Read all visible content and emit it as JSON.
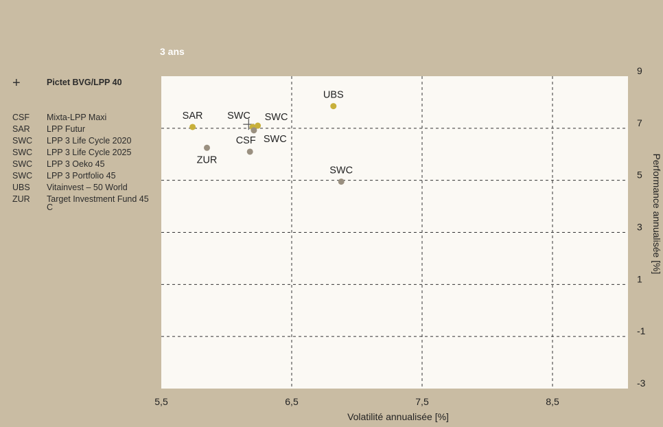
{
  "chart_data": {
    "type": "scatter",
    "subtitle": "3 ans",
    "xlabel": "Volatilité annualisée [%]",
    "ylabel": "Performance annualisée [%]",
    "xlim": [
      5.5,
      9.2
    ],
    "ylim": [
      -3,
      9
    ],
    "x_ticks": [
      "5,5",
      "6,5",
      "7,5",
      "8,5"
    ],
    "x_tick_values": [
      5.5,
      6.5,
      7.5,
      8.5
    ],
    "y_ticks": [
      "9",
      "7",
      "5",
      "3",
      "1",
      "-1",
      "-3"
    ],
    "y_tick_values": [
      9,
      7,
      5,
      3,
      1,
      -1,
      -3
    ],
    "grid": true,
    "benchmark": {
      "name": "Pictet BVG/LPP 40",
      "x": 6.17,
      "y": 7.15
    },
    "points": [
      {
        "label": "SAR",
        "x": 5.74,
        "y": 7.05,
        "color": "#c8b03a"
      },
      {
        "label": "ZUR",
        "x": 5.85,
        "y": 6.25,
        "color": "#9a9080"
      },
      {
        "label": "CSF",
        "x": 6.18,
        "y": 6.1,
        "color": "#9a9080"
      },
      {
        "label": "SWC",
        "x": 6.2,
        "y": 7.05,
        "color": "#c8b03a"
      },
      {
        "label": "SWC",
        "x": 6.24,
        "y": 7.1,
        "color": "#c8b03a"
      },
      {
        "label": "SWC",
        "x": 6.21,
        "y": 6.92,
        "color": "#9a9080"
      },
      {
        "label": "UBS",
        "x": 6.82,
        "y": 7.85,
        "color": "#c8b03a"
      },
      {
        "label": "SWC",
        "x": 6.88,
        "y": 4.95,
        "color": "#9a9080"
      }
    ]
  },
  "legend": {
    "benchmark_label": "Pictet BVG/LPP 40",
    "items": [
      {
        "code": "CSF",
        "name": "Mixta-LPP Maxi"
      },
      {
        "code": "SAR",
        "name": "LPP Futur"
      },
      {
        "code": "SWC",
        "name": "LPP 3 Life Cycle 2020"
      },
      {
        "code": "SWC",
        "name": "LPP 3 Life Cycle 2025"
      },
      {
        "code": "SWC",
        "name": "LPP 3 Oeko 45"
      },
      {
        "code": "SWC",
        "name": "LPP 3 Portfolio 45"
      },
      {
        "code": "UBS",
        "name": "Vitainvest – 50 World"
      },
      {
        "code": "ZUR",
        "name": "Target Investment Fund 45 C"
      }
    ]
  }
}
